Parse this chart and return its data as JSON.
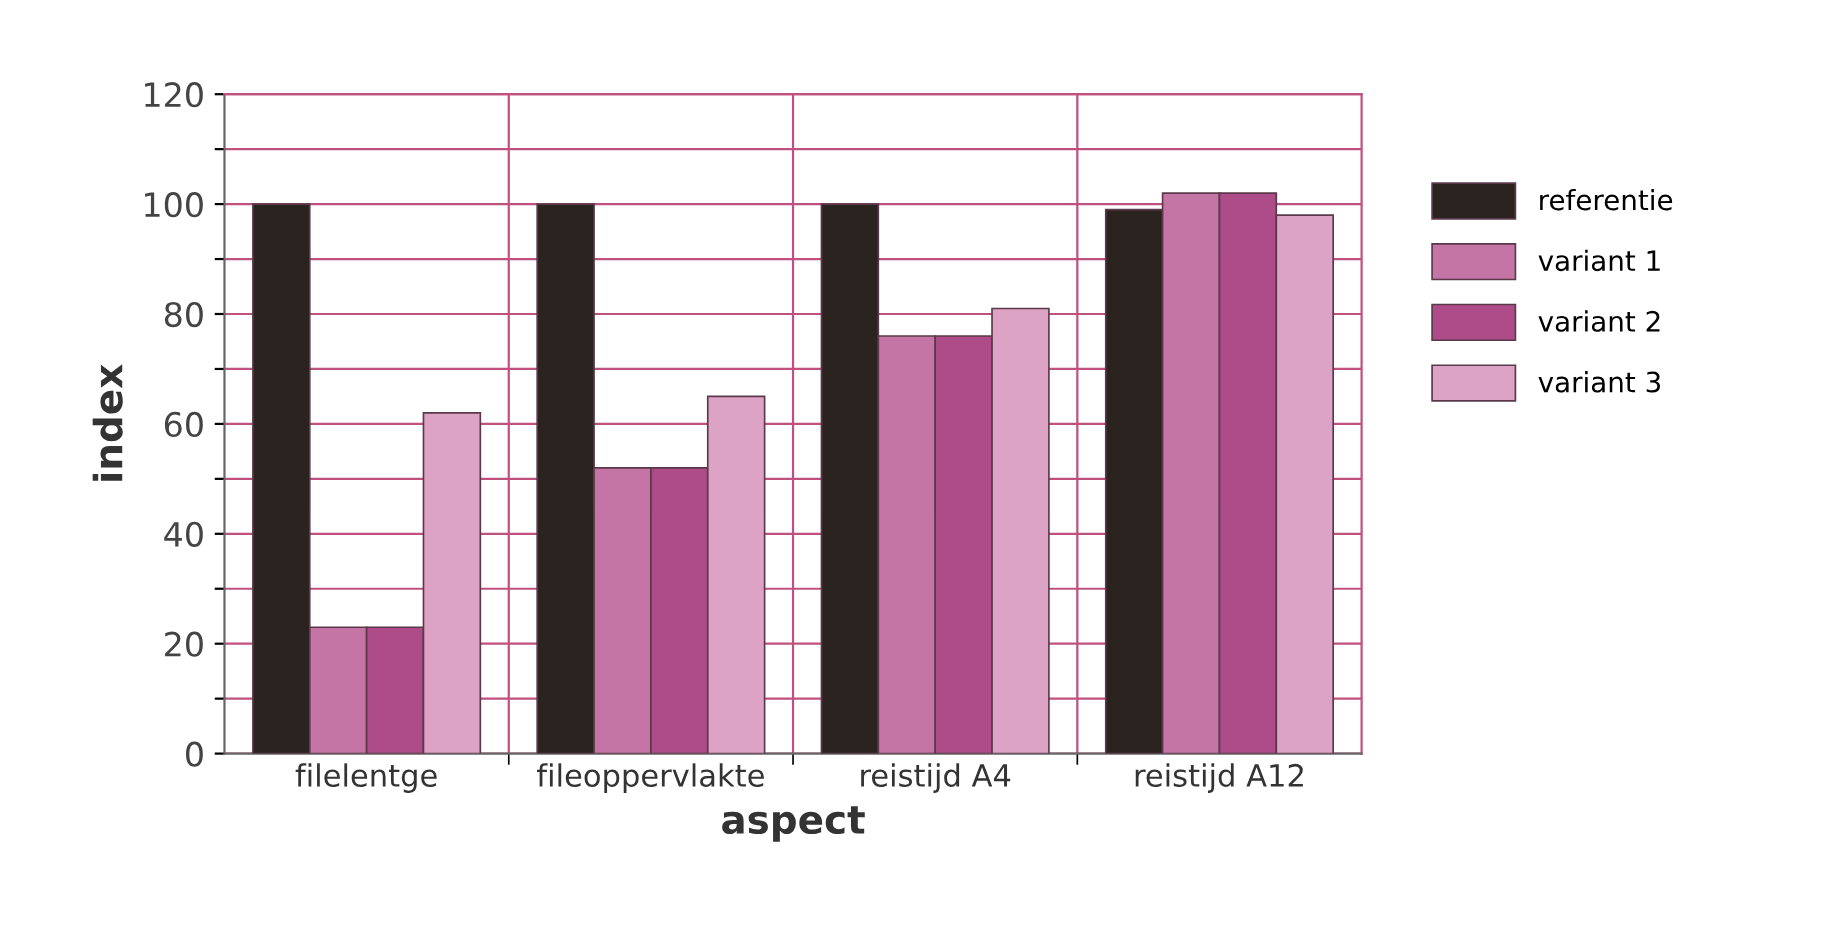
{
  "chart_data": {
    "type": "bar",
    "xlabel": "aspect",
    "ylabel": "index",
    "categories": [
      "filelentge",
      "fileoppervlakte",
      "reistijd A4",
      "reistijd A12"
    ],
    "series": [
      {
        "name": "referentie",
        "color": "#2b2320",
        "values": [
          100,
          100,
          100,
          99
        ]
      },
      {
        "name": "variant 1",
        "color": "#c575a5",
        "values": [
          23,
          52,
          76,
          102
        ]
      },
      {
        "name": "variant 2",
        "color": "#ad4c88",
        "values": [
          23,
          52,
          76,
          102
        ]
      },
      {
        "name": "variant 3",
        "color": "#dda3c4",
        "values": [
          62,
          65,
          81,
          98
        ]
      }
    ],
    "ylim": [
      0,
      120
    ],
    "yticks": [
      0,
      {
        "value": 10,
        "label": null
      },
      20,
      {
        "value": 30,
        "label": null
      },
      40,
      {
        "value": 50,
        "label": null
      },
      60,
      {
        "value": 70,
        "label": null
      },
      80,
      {
        "value": 90,
        "label": null
      },
      100,
      {
        "value": 110,
        "label": null
      },
      120
    ],
    "grid": true,
    "legend": "right"
  }
}
